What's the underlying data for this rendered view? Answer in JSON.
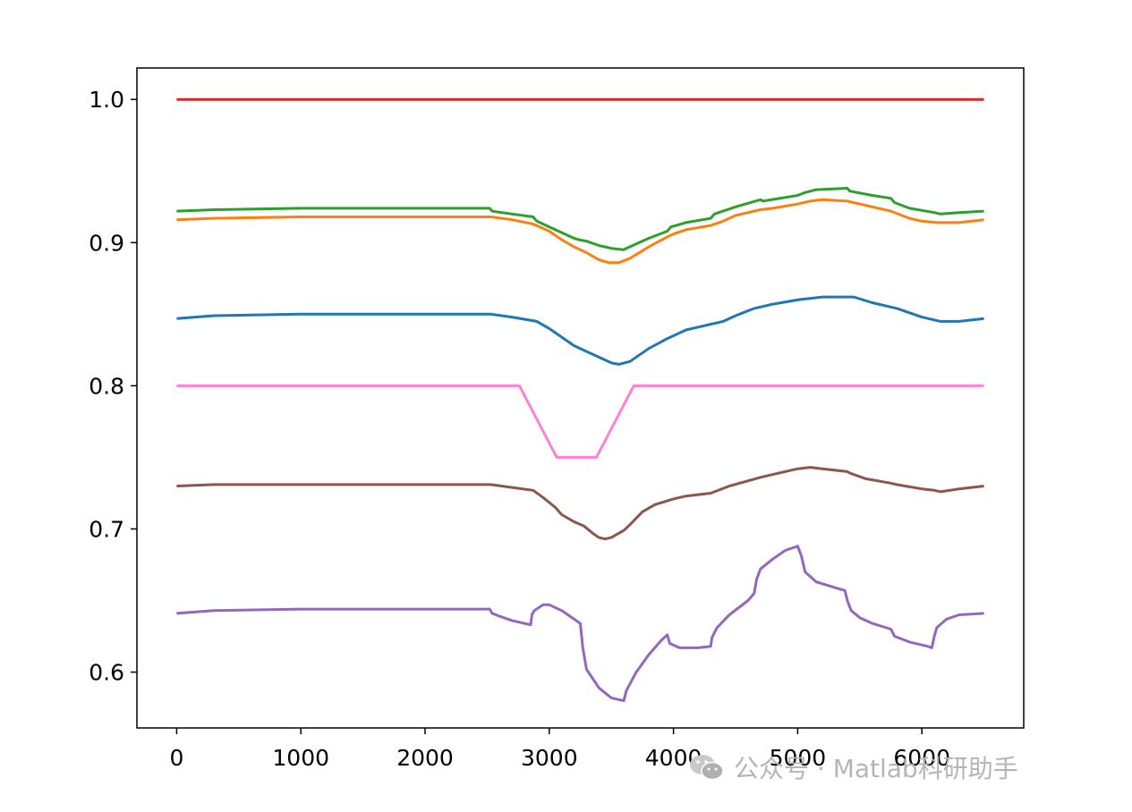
{
  "chart_data": {
    "type": "line",
    "xlim": [
      -320,
      6820
    ],
    "ylim": [
      0.561,
      1.022
    ],
    "xticks": [
      0,
      1000,
      2000,
      3000,
      4000,
      5000,
      6000
    ],
    "yticks": [
      0.6,
      0.7,
      0.8,
      0.9,
      1.0
    ],
    "xtick_labels": [
      "0",
      "1000",
      "2000",
      "3000",
      "4000",
      "5000",
      "6000"
    ],
    "ytick_labels": [
      "0.6",
      "0.7",
      "0.8",
      "0.9",
      "1.0"
    ],
    "grid": false,
    "series": [
      {
        "color": "#1f77b4",
        "x": [
          0,
          300,
          1000,
          2000,
          2530,
          2700,
          2900,
          3000,
          3100,
          3200,
          3300,
          3400,
          3500,
          3560,
          3650,
          3800,
          3950,
          4100,
          4300,
          4400,
          4500,
          4650,
          4800,
          5000,
          5200,
          5300,
          5450,
          5600,
          5800,
          6000,
          6150,
          6300,
          6500
        ],
        "y": [
          0.847,
          0.849,
          0.85,
          0.85,
          0.85,
          0.848,
          0.845,
          0.84,
          0.834,
          0.828,
          0.824,
          0.82,
          0.816,
          0.815,
          0.817,
          0.826,
          0.833,
          0.839,
          0.843,
          0.845,
          0.849,
          0.854,
          0.857,
          0.86,
          0.862,
          0.862,
          0.862,
          0.858,
          0.854,
          0.848,
          0.845,
          0.845,
          0.847
        ]
      },
      {
        "color": "#ff7f0e",
        "x": [
          0,
          300,
          1000,
          2000,
          2530,
          2700,
          2870,
          3000,
          3100,
          3200,
          3300,
          3400,
          3480,
          3560,
          3650,
          3800,
          3950,
          4000,
          4100,
          4300,
          4400,
          4500,
          4700,
          4800,
          5000,
          5100,
          5200,
          5400,
          5600,
          5750,
          5900,
          6000,
          6120,
          6300,
          6500
        ],
        "y": [
          0.916,
          0.917,
          0.918,
          0.918,
          0.918,
          0.916,
          0.913,
          0.908,
          0.902,
          0.897,
          0.893,
          0.888,
          0.886,
          0.886,
          0.889,
          0.897,
          0.904,
          0.906,
          0.909,
          0.912,
          0.915,
          0.919,
          0.923,
          0.924,
          0.927,
          0.929,
          0.93,
          0.929,
          0.925,
          0.922,
          0.917,
          0.915,
          0.914,
          0.914,
          0.916
        ]
      },
      {
        "color": "#2ca02c",
        "x": [
          0,
          300,
          1000,
          2000,
          2520,
          2540,
          2700,
          2870,
          2900,
          3000,
          3100,
          3200,
          3240,
          3300,
          3400,
          3500,
          3600,
          3620,
          3800,
          3950,
          3980,
          4100,
          4300,
          4330,
          4500,
          4700,
          4720,
          5000,
          5060,
          5150,
          5400,
          5420,
          5600,
          5750,
          5780,
          5900,
          6100,
          6150,
          6300,
          6500
        ],
        "y": [
          0.922,
          0.923,
          0.924,
          0.924,
          0.924,
          0.922,
          0.92,
          0.918,
          0.915,
          0.911,
          0.907,
          0.903,
          0.902,
          0.901,
          0.898,
          0.896,
          0.895,
          0.896,
          0.903,
          0.908,
          0.911,
          0.914,
          0.917,
          0.92,
          0.925,
          0.93,
          0.929,
          0.933,
          0.935,
          0.937,
          0.938,
          0.936,
          0.933,
          0.931,
          0.928,
          0.924,
          0.921,
          0.92,
          0.921,
          0.922
        ]
      },
      {
        "color": "#d62728",
        "x": [
          0,
          6500
        ],
        "y": [
          1.0,
          1.0
        ]
      },
      {
        "color": "#9467bd",
        "x": [
          0,
          300,
          1000,
          2000,
          2520,
          2540,
          2600,
          2700,
          2850,
          2860,
          2880,
          2950,
          3000,
          3100,
          3150,
          3250,
          3270,
          3300,
          3400,
          3500,
          3600,
          3620,
          3700,
          3800,
          3900,
          3950,
          3970,
          4050,
          4200,
          4300,
          4310,
          4350,
          4450,
          4600,
          4650,
          4670,
          4700,
          4800,
          4900,
          5000,
          5030,
          5060,
          5150,
          5300,
          5380,
          5400,
          5430,
          5500,
          5600,
          5750,
          5780,
          5900,
          6050,
          6080,
          6100,
          6120,
          6200,
          6300,
          6500
        ],
        "y": [
          0.641,
          0.643,
          0.644,
          0.644,
          0.644,
          0.641,
          0.639,
          0.636,
          0.633,
          0.64,
          0.643,
          0.647,
          0.647,
          0.643,
          0.64,
          0.634,
          0.617,
          0.602,
          0.589,
          0.582,
          0.58,
          0.587,
          0.6,
          0.612,
          0.622,
          0.626,
          0.62,
          0.617,
          0.617,
          0.618,
          0.624,
          0.631,
          0.64,
          0.65,
          0.655,
          0.665,
          0.672,
          0.679,
          0.685,
          0.688,
          0.681,
          0.67,
          0.663,
          0.659,
          0.657,
          0.65,
          0.643,
          0.638,
          0.634,
          0.63,
          0.625,
          0.621,
          0.618,
          0.617,
          0.625,
          0.631,
          0.637,
          0.64,
          0.641
        ]
      },
      {
        "color": "#8c564b",
        "x": [
          0,
          300,
          1000,
          2000,
          2530,
          2700,
          2870,
          2950,
          3050,
          3100,
          3200,
          3280,
          3350,
          3400,
          3450,
          3500,
          3600,
          3650,
          3750,
          3850,
          4000,
          4100,
          4300,
          4330,
          4450,
          4700,
          4800,
          5000,
          5100,
          5200,
          5400,
          5420,
          5550,
          5750,
          5800,
          6000,
          6100,
          6150,
          6300,
          6500
        ],
        "y": [
          0.73,
          0.731,
          0.731,
          0.731,
          0.731,
          0.729,
          0.727,
          0.722,
          0.715,
          0.71,
          0.705,
          0.702,
          0.697,
          0.694,
          0.693,
          0.694,
          0.699,
          0.703,
          0.712,
          0.717,
          0.721,
          0.723,
          0.725,
          0.726,
          0.73,
          0.736,
          0.738,
          0.742,
          0.743,
          0.742,
          0.74,
          0.739,
          0.735,
          0.732,
          0.731,
          0.728,
          0.727,
          0.726,
          0.728,
          0.73
        ]
      },
      {
        "color": "#ff7fda",
        "x": [
          0,
          2760,
          3060,
          3380,
          3680,
          6500
        ],
        "y": [
          0.8,
          0.8,
          0.75,
          0.75,
          0.8,
          0.8
        ]
      }
    ]
  },
  "watermark": {
    "text": "公众号 · Matlab科研助手",
    "icon": "wechat-icon"
  }
}
